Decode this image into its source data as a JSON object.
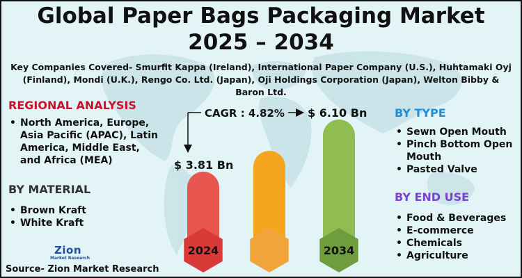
{
  "title_line1": "Global Paper Bags Packaging Market",
  "title_line2": "2025 – 2034",
  "companies": "Key Companies Covered- Smurfit Kappa (Ireland), International Paper Company (U.S.), Huhtamaki Oyj (Finland), Mondi (U.K.), Rengo Co. Ltd. (Japan), Oji Holdings Corporation (Japan), Welton Bibby & Baron Ltd.",
  "regional": {
    "title": "REGIONAL ANALYSIS",
    "items": [
      "North America, Europe, Asia Pacific (APAC), Latin America, Middle East, and Africa (MEA)"
    ]
  },
  "material": {
    "title": "BY MATERIAL",
    "items": [
      "Brown Kraft",
      "White Kraft"
    ]
  },
  "type": {
    "title": "BY TYPE",
    "items": [
      "Sewn Open Mouth",
      "Pinch Bottom Open Mouth",
      "Pasted Valve"
    ]
  },
  "end_use": {
    "title": "BY END USE",
    "items": [
      "Food & Beverages",
      "E-commerce",
      "Chemicals",
      "Agriculture"
    ]
  },
  "source": "Source- Zion Market Research",
  "logo": {
    "name": "Zion",
    "sub": "Market Research"
  },
  "colors": {
    "bar_2024": "#e8574f",
    "bar_mid": "#f6a51e",
    "bar_2034": "#8fbd4f",
    "hex_2024": "#d93a37",
    "hex_mid": "#f0a43a",
    "hex_2034": "#6f9d3d"
  },
  "chart_data": {
    "type": "bar",
    "categories": [
      "2024",
      "",
      "2034"
    ],
    "values": [
      3.81,
      null,
      6.1
    ],
    "value_labels": [
      "$ 3.81 Bn",
      "",
      "$ 6.10 Bn"
    ],
    "cagr_label": "CAGR : 4.82%",
    "unit": "Bn"
  }
}
